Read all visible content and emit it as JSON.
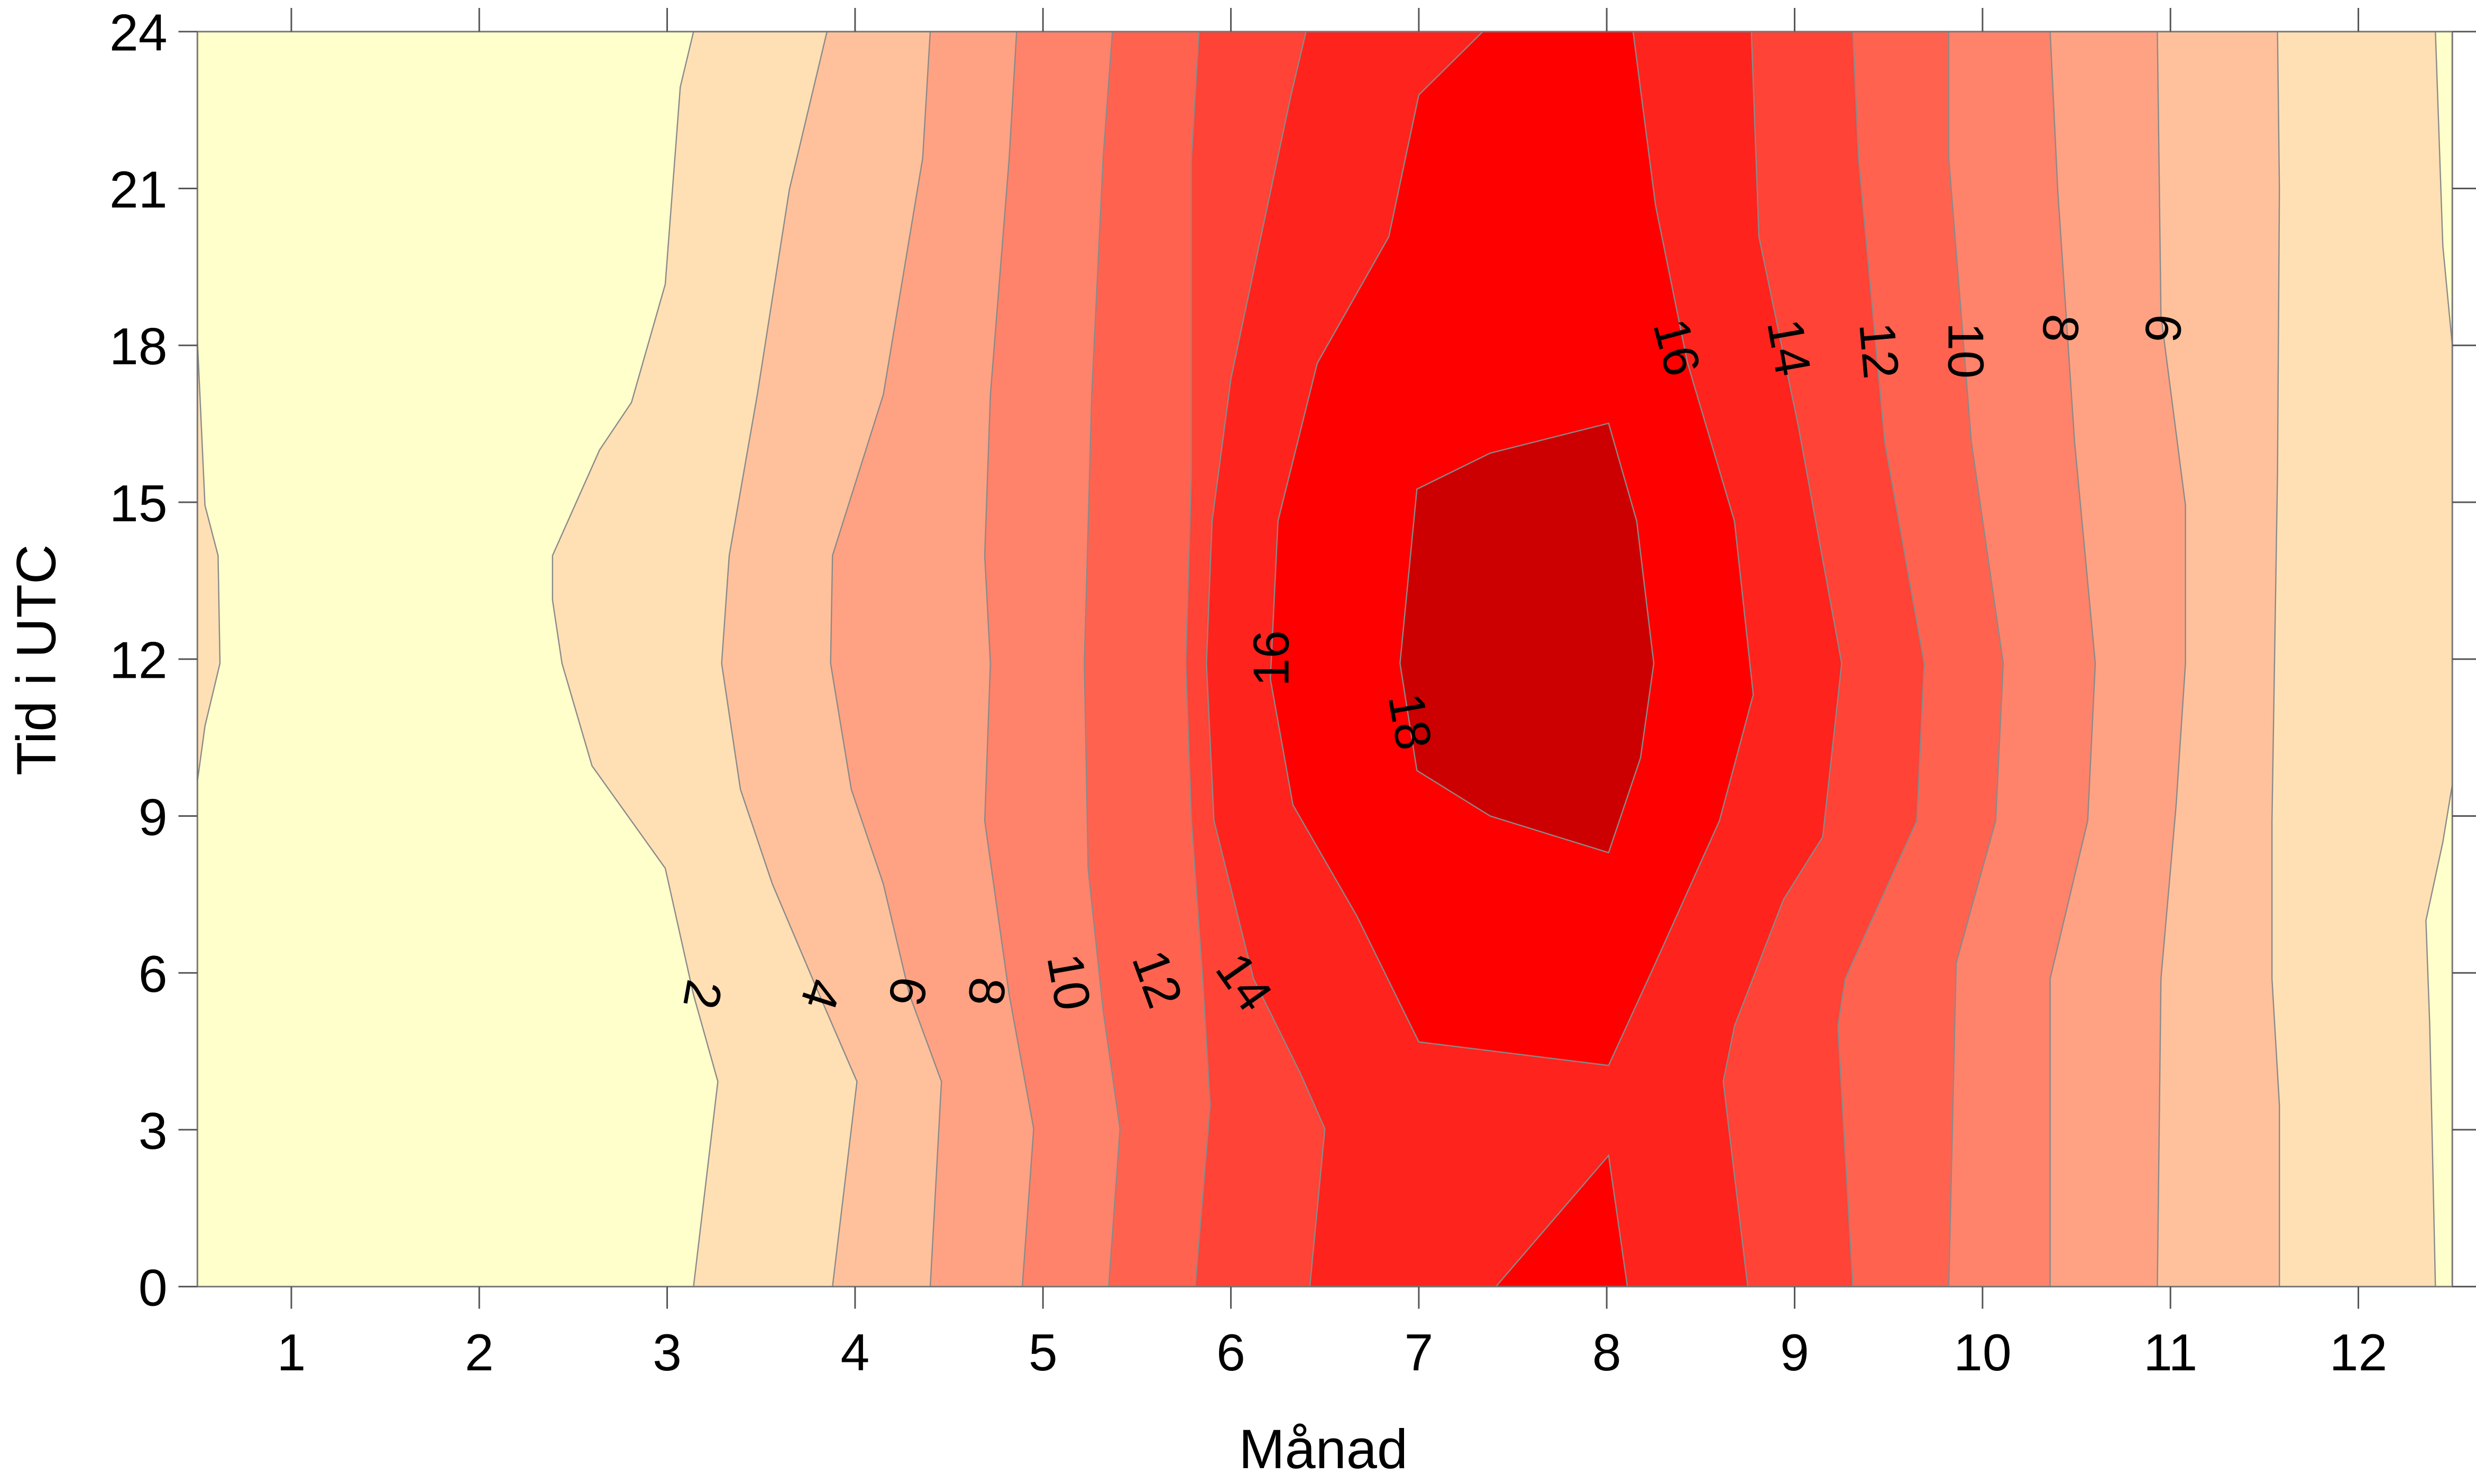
{
  "chart_data": {
    "type": "contour",
    "title": "",
    "xlabel": "Månad",
    "ylabel": "Tid i UTC",
    "xlim": [
      0.5,
      12.5
    ],
    "ylim": [
      0,
      24
    ],
    "xticks": [
      "1",
      "2",
      "3",
      "4",
      "5",
      "6",
      "7",
      "8",
      "9",
      "10",
      "11",
      "12"
    ],
    "yticks": [
      "0",
      "3",
      "6",
      "9",
      "12",
      "15",
      "18",
      "21",
      "24"
    ],
    "grid": false,
    "levels": [
      0,
      2,
      4,
      6,
      8,
      10,
      12,
      14,
      16,
      18
    ],
    "colors": [
      "#FFFFCC",
      "#FFE0B4",
      "#FFC19C",
      "#FFA283",
      "#FF826A",
      "#FF6350",
      "#FF4336",
      "#FF231E",
      "#FF0000",
      "#CC0000"
    ],
    "bands": [
      {
        "level": 2,
        "left": [
          [
            3.14,
            24
          ],
          [
            3.07,
            22.94
          ],
          [
            2.99,
            19.17
          ],
          [
            2.81,
            16.91
          ],
          [
            2.64,
            16.0
          ],
          [
            2.39,
            13.98
          ],
          [
            2.39,
            13.13
          ],
          [
            2.44,
            11.92
          ],
          [
            2.6,
            9.96
          ],
          [
            2.99,
            8.0
          ],
          [
            3.14,
            5.58
          ],
          [
            3.27,
            3.92
          ],
          [
            3.14,
            0
          ]
        ],
        "right": [
          [
            12.41,
            24
          ],
          [
            12.45,
            19.9
          ],
          [
            12.5,
            18.0
          ],
          [
            12.5,
            9.6
          ],
          [
            12.45,
            8.5
          ],
          [
            12.36,
            7.0
          ],
          [
            12.38,
            5.0
          ],
          [
            12.41,
            0
          ]
        ],
        "extra": [
          [
            [
              0.5,
              18.11
            ],
            [
              0.54,
              14.94
            ],
            [
              0.61,
              13.98
            ],
            [
              0.62,
              11.92
            ],
            [
              0.54,
              10.72
            ],
            [
              0.5,
              9.66
            ]
          ]
        ]
      },
      {
        "level": 4,
        "left": [
          [
            3.85,
            24
          ],
          [
            3.65,
            20.98
          ],
          [
            3.48,
            17.06
          ],
          [
            3.33,
            13.98
          ],
          [
            3.29,
            11.92
          ],
          [
            3.39,
            9.51
          ],
          [
            3.56,
            7.7
          ],
          [
            3.81,
            5.58
          ],
          [
            4.01,
            3.92
          ],
          [
            3.88,
            0
          ]
        ],
        "right": [
          [
            11.57,
            24
          ],
          [
            11.58,
            20.98
          ],
          [
            11.57,
            15.55
          ],
          [
            11.54,
            8.91
          ],
          [
            11.54,
            5.89
          ],
          [
            11.58,
            3.47
          ],
          [
            11.58,
            0
          ]
        ]
      },
      {
        "level": 6,
        "left": [
          [
            4.4,
            24
          ],
          [
            4.36,
            21.58
          ],
          [
            4.15,
            17.06
          ],
          [
            3.88,
            13.98
          ],
          [
            3.87,
            11.92
          ],
          [
            3.98,
            9.51
          ],
          [
            4.15,
            7.7
          ],
          [
            4.29,
            5.58
          ],
          [
            4.46,
            3.92
          ],
          [
            4.4,
            0
          ]
        ],
        "right": [
          [
            10.93,
            24
          ],
          [
            10.95,
            18.57
          ],
          [
            11.08,
            14.94
          ],
          [
            11.08,
            11.92
          ],
          [
            11.03,
            9.21
          ],
          [
            10.95,
            5.89
          ],
          [
            10.93,
            0
          ]
        ]
      },
      {
        "level": 8,
        "left": [
          [
            4.86,
            24
          ],
          [
            4.82,
            21.58
          ],
          [
            4.72,
            17.06
          ],
          [
            4.69,
            13.98
          ],
          [
            4.72,
            11.92
          ],
          [
            4.69,
            8.91
          ],
          [
            4.82,
            5.58
          ],
          [
            4.95,
            3.02
          ],
          [
            4.89,
            0
          ]
        ],
        "right": [
          [
            10.36,
            24
          ],
          [
            10.4,
            20.98
          ],
          [
            10.49,
            16.15
          ],
          [
            10.6,
            11.92
          ],
          [
            10.56,
            8.91
          ],
          [
            10.36,
            5.89
          ],
          [
            10.36,
            0
          ]
        ]
      },
      {
        "level": 10,
        "left": [
          [
            5.37,
            24
          ],
          [
            5.32,
            21.58
          ],
          [
            5.26,
            17.06
          ],
          [
            5.22,
            11.92
          ],
          [
            5.24,
            8.0
          ],
          [
            5.32,
            5.28
          ],
          [
            5.41,
            3.02
          ],
          [
            5.35,
            0
          ]
        ],
        "right": [
          [
            9.82,
            24
          ],
          [
            9.82,
            21.58
          ],
          [
            9.94,
            16.15
          ],
          [
            10.11,
            11.92
          ],
          [
            10.07,
            8.91
          ],
          [
            9.86,
            6.19
          ],
          [
            9.82,
            0
          ]
        ]
      },
      {
        "level": 12,
        "left": [
          [
            5.83,
            24
          ],
          [
            5.79,
            21.58
          ],
          [
            5.79,
            15.55
          ],
          [
            5.76,
            11.92
          ],
          [
            5.79,
            8.91
          ],
          [
            5.85,
            5.89
          ],
          [
            5.89,
            3.47
          ],
          [
            5.81,
            0
          ]
        ],
        "right": [
          [
            9.31,
            24
          ],
          [
            9.34,
            21.58
          ],
          [
            9.48,
            16.15
          ],
          [
            9.69,
            11.92
          ],
          [
            9.65,
            8.91
          ],
          [
            9.27,
            5.89
          ],
          [
            9.23,
            4.98
          ],
          [
            9.31,
            0
          ]
        ]
      },
      {
        "level": 14,
        "left": [
          [
            6.4,
            24
          ],
          [
            6.32,
            22.79
          ],
          [
            6.16,
            20.08
          ],
          [
            6.0,
            17.36
          ],
          [
            5.9,
            14.64
          ],
          [
            5.87,
            11.92
          ],
          [
            5.91,
            8.91
          ],
          [
            6.12,
            5.89
          ],
          [
            6.37,
            4.08
          ],
          [
            6.5,
            3.02
          ],
          [
            6.42,
            0
          ]
        ],
        "right": [
          [
            8.77,
            24
          ],
          [
            8.81,
            20.08
          ],
          [
            9.02,
            16.45
          ],
          [
            9.25,
            11.92
          ],
          [
            9.15,
            8.6
          ],
          [
            8.94,
            7.4
          ],
          [
            8.68,
            4.98
          ],
          [
            8.62,
            3.92
          ],
          [
            8.75,
            0
          ]
        ]
      },
      {
        "level": 16,
        "polygons": [
          [
            [
              7.34,
              24
            ],
            [
              7.0,
              22.79
            ],
            [
              6.84,
              20.08
            ],
            [
              6.46,
              17.66
            ],
            [
              6.25,
              14.64
            ],
            [
              6.21,
              11.62
            ],
            [
              6.33,
              9.21
            ],
            [
              6.67,
              7.09
            ],
            [
              7.0,
              4.68
            ],
            [
              8.01,
              4.23
            ],
            [
              8.26,
              6.19
            ],
            [
              8.6,
              8.91
            ],
            [
              8.78,
              11.32
            ],
            [
              8.68,
              14.64
            ],
            [
              8.43,
              17.66
            ],
            [
              8.26,
              20.68
            ],
            [
              8.14,
              24
            ]
          ],
          [
            [
              7.41,
              0
            ],
            [
              8.01,
              2.51
            ],
            [
              8.11,
              0
            ]
          ]
        ]
      },
      {
        "level": 18,
        "polygons": [
          [
            [
              6.99,
              15.25
            ],
            [
              7.38,
              15.94
            ],
            [
              8.01,
              16.51
            ],
            [
              8.16,
              14.64
            ],
            [
              8.25,
              11.92
            ],
            [
              8.18,
              10.11
            ],
            [
              8.01,
              8.3
            ],
            [
              7.38,
              9.0
            ],
            [
              6.99,
              9.87
            ],
            [
              6.9,
              11.92
            ]
          ]
        ]
      }
    ],
    "contour_labels": [
      "2",
      "4",
      "6",
      "8",
      "10",
      "12",
      "14",
      "16",
      "14",
      "12",
      "10",
      "8",
      "6",
      "16",
      "18"
    ]
  }
}
